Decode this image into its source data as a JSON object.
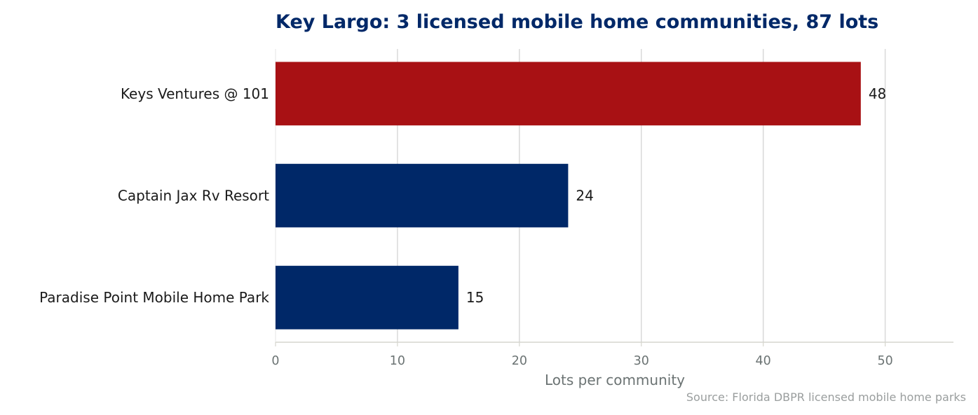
{
  "chart_data": {
    "type": "bar",
    "orientation": "horizontal",
    "title": "Key Largo: 3 licensed mobile home communities, 87 lots",
    "xlabel": "Lots per community",
    "ylabel": "",
    "xlim": [
      0,
      55.6
    ],
    "xticks": [
      0,
      10,
      20,
      30,
      40,
      50
    ],
    "grid": "vertical",
    "categories": [
      "Keys Ventures @ 101",
      "Captain Jax Rv Resort",
      "Paradise Point Mobile Home Park"
    ],
    "values": [
      48,
      24,
      15
    ],
    "bar_colors": [
      "#a81114",
      "#002868",
      "#002868"
    ],
    "source": "Source: Florida DBPR licensed mobile home parks"
  }
}
